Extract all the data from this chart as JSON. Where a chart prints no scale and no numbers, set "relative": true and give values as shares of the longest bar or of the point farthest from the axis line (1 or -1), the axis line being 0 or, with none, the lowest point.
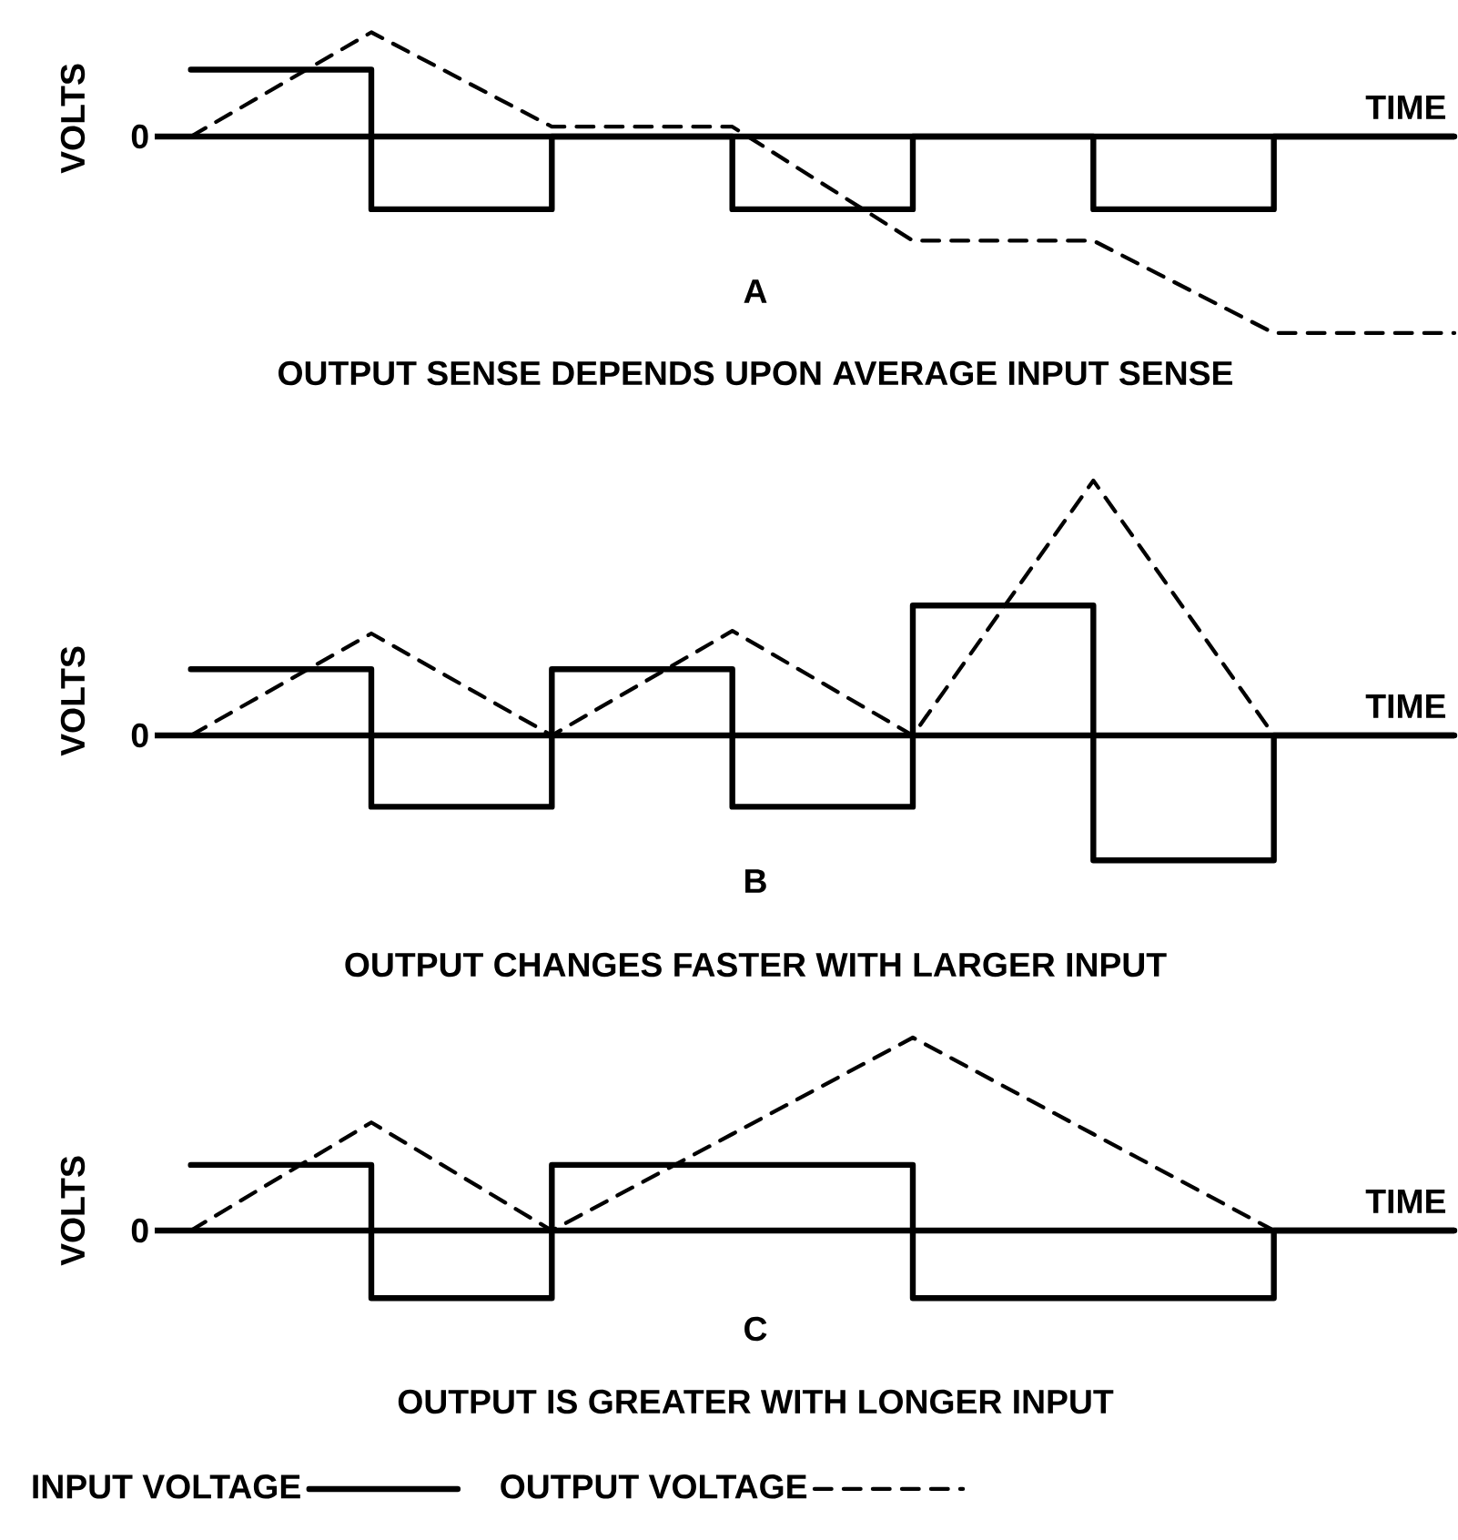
{
  "chart_data": [
    {
      "type": "line",
      "title": "A",
      "subtitle": "OUTPUT SENSE DEPENDS UPON AVERAGE INPUT SENSE",
      "ylabel": "VOLTS",
      "xlabel": "TIME",
      "annotations": [
        "0"
      ],
      "relative": true,
      "categories": [
        null,
        null,
        null,
        null,
        null,
        null,
        null,
        null
      ],
      "marker": "none",
      "series": [
        {
          "type": "step",
          "color": "#000000",
          "line_style": "solid",
          "values": [
            0.34,
            -0.37,
            0,
            -0.37,
            0,
            -0.37,
            0,
            0
          ]
        },
        {
          "color": "#000000",
          "line_style": "dashed",
          "values": [
            0,
            0.53,
            0.05,
            0.05,
            -0.53,
            -0.53,
            -1,
            -1
          ]
        }
      ]
    },
    {
      "type": "line",
      "title": "B",
      "subtitle": "OUTPUT CHANGES FASTER WITH LARGER INPUT",
      "ylabel": "VOLTS",
      "xlabel": "TIME",
      "annotations": [
        "0"
      ],
      "relative": true,
      "categories": [
        null,
        null,
        null,
        null,
        null,
        null,
        null,
        null
      ],
      "marker": "none",
      "series": [
        {
          "type": "step",
          "color": "#000000",
          "line_style": "solid",
          "values": [
            0.26,
            -0.28,
            0.26,
            -0.28,
            0.51,
            -0.49,
            0,
            0
          ]
        },
        {
          "color": "#000000",
          "line_style": "dashed",
          "values": [
            0,
            0.4,
            0,
            0.41,
            0,
            1,
            0,
            null
          ]
        }
      ]
    },
    {
      "type": "line",
      "title": "C",
      "subtitle": "OUTPUT IS GREATER WITH LONGER INPUT",
      "ylabel": "VOLTS",
      "xlabel": "TIME",
      "annotations": [
        "0"
      ],
      "relative": true,
      "categories": [
        null,
        null,
        null,
        null,
        null,
        null,
        null,
        null
      ],
      "marker": "none",
      "legend": "bottom",
      "series": [
        {
          "name": "INPUT VOLTAGE",
          "type": "step",
          "color": "#000000",
          "line_style": "solid",
          "values": [
            0.34,
            -0.35,
            0.34,
            0.34,
            -0.35,
            -0.35,
            0,
            0
          ]
        },
        {
          "name": "OUTPUT VOLTAGE",
          "color": "#000000",
          "line_style": "dashed",
          "values": [
            0,
            0.56,
            0,
            0.5,
            1,
            0.5,
            0,
            null
          ]
        }
      ]
    }
  ]
}
